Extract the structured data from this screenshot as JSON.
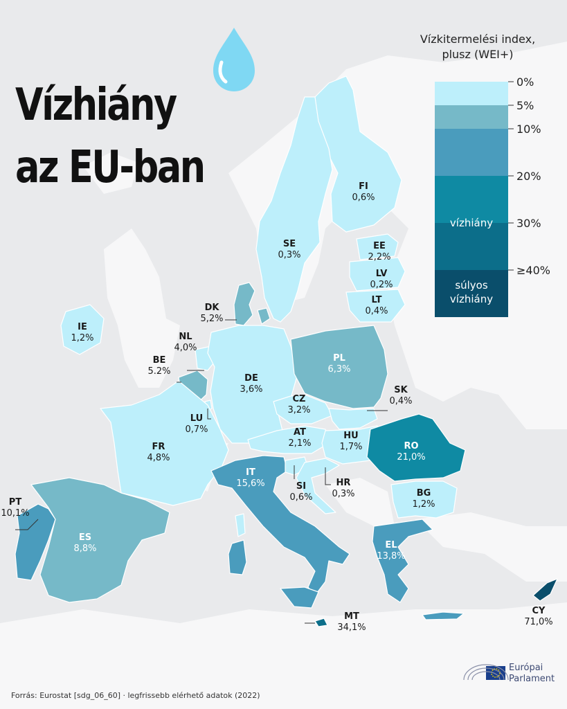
{
  "title": {
    "line1": "Vízhiány",
    "line2": "az EU-ban"
  },
  "legend": {
    "title_line1": "Vízkitermelési index,",
    "title_line2": "plusz (WEI+)",
    "ticks": [
      "0%",
      "5%",
      "10%",
      "20%",
      "30%",
      "≥40%"
    ],
    "band_labels": {
      "scarcity": "vízhiány",
      "severe_line1": "súlyos",
      "severe_line2": "vízhiány"
    },
    "colors": [
      "#bdeffb",
      "#76b9c8",
      "#4a9cbd",
      "#0f8aa3",
      "#0c6e8a",
      "#0a4e6b"
    ]
  },
  "countries": [
    {
      "code": "FI",
      "value": "0,6%"
    },
    {
      "code": "SE",
      "value": "0,3%"
    },
    {
      "code": "EE",
      "value": "2,2%"
    },
    {
      "code": "LV",
      "value": "0,2%"
    },
    {
      "code": "LT",
      "value": "0,4%"
    },
    {
      "code": "DK",
      "value": "5,2%"
    },
    {
      "code": "IE",
      "value": "1,2%"
    },
    {
      "code": "NL",
      "value": "4,0%"
    },
    {
      "code": "BE",
      "value": "5.2%"
    },
    {
      "code": "PL",
      "value": "6,3%"
    },
    {
      "code": "DE",
      "value": "3,6%"
    },
    {
      "code": "LU",
      "value": "0,7%"
    },
    {
      "code": "CZ",
      "value": "3,2%"
    },
    {
      "code": "SK",
      "value": "0,4%"
    },
    {
      "code": "AT",
      "value": "2,1%"
    },
    {
      "code": "HU",
      "value": "1,7%"
    },
    {
      "code": "RO",
      "value": "21,0%"
    },
    {
      "code": "FR",
      "value": "4,8%"
    },
    {
      "code": "IT",
      "value": "15,6%"
    },
    {
      "code": "SI",
      "value": "0,6%"
    },
    {
      "code": "HR",
      "value": "0,3%"
    },
    {
      "code": "BG",
      "value": "1,2%"
    },
    {
      "code": "PT",
      "value": "10,1%"
    },
    {
      "code": "ES",
      "value": "8,8%"
    },
    {
      "code": "EL",
      "value": "13,8%"
    },
    {
      "code": "MT",
      "value": "34,1%"
    },
    {
      "code": "CY",
      "value": "71,0%"
    }
  ],
  "source": "Forrás: Eurostat [sdg_06_60] · legfrissebb elérhető adatok (2022)",
  "logo": {
    "line1": "Európai",
    "line2": "Parlament"
  }
}
